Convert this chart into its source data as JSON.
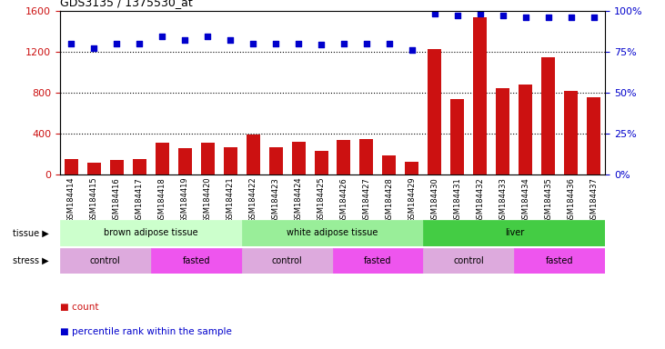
{
  "title": "GDS3135 / 1375530_at",
  "samples": [
    "GSM184414",
    "GSM184415",
    "GSM184416",
    "GSM184417",
    "GSM184418",
    "GSM184419",
    "GSM184420",
    "GSM184421",
    "GSM184422",
    "GSM184423",
    "GSM184424",
    "GSM184425",
    "GSM184426",
    "GSM184427",
    "GSM184428",
    "GSM184429",
    "GSM184430",
    "GSM184431",
    "GSM184432",
    "GSM184433",
    "GSM184434",
    "GSM184435",
    "GSM184436",
    "GSM184437"
  ],
  "counts": [
    155,
    115,
    140,
    155,
    310,
    255,
    310,
    265,
    390,
    265,
    315,
    230,
    335,
    350,
    185,
    125,
    1220,
    740,
    1530,
    845,
    875,
    1140,
    815,
    755
  ],
  "percentile_ranks": [
    80,
    77,
    80,
    80,
    84,
    82,
    84,
    82,
    80,
    80,
    80,
    79,
    80,
    80,
    80,
    76,
    98,
    97,
    98,
    97,
    96,
    96,
    96,
    96
  ],
  "bar_color": "#cc1111",
  "dot_color": "#0000cc",
  "left_ylim": [
    0,
    1600
  ],
  "right_ylim": [
    0,
    100
  ],
  "left_yticks": [
    0,
    400,
    800,
    1200,
    1600
  ],
  "right_yticks": [
    0,
    25,
    50,
    75,
    100
  ],
  "right_yticklabels": [
    "0%",
    "25%",
    "50%",
    "75%",
    "100%"
  ],
  "grid_values": [
    400,
    800,
    1200
  ],
  "tissue_groups": [
    {
      "label": "brown adipose tissue",
      "start": 0,
      "end": 8,
      "color": "#ccffcc"
    },
    {
      "label": "white adipose tissue",
      "start": 8,
      "end": 16,
      "color": "#99ee99"
    },
    {
      "label": "liver",
      "start": 16,
      "end": 24,
      "color": "#44cc44"
    }
  ],
  "stress_groups": [
    {
      "label": "control",
      "start": 0,
      "end": 4,
      "color": "#ddaadd"
    },
    {
      "label": "fasted",
      "start": 4,
      "end": 8,
      "color": "#ee55ee"
    },
    {
      "label": "control",
      "start": 8,
      "end": 12,
      "color": "#ddaadd"
    },
    {
      "label": "fasted",
      "start": 12,
      "end": 16,
      "color": "#ee55ee"
    },
    {
      "label": "control",
      "start": 16,
      "end": 20,
      "color": "#ddaadd"
    },
    {
      "label": "fasted",
      "start": 20,
      "end": 24,
      "color": "#ee55ee"
    }
  ],
  "legend_count_label": "count",
  "legend_pct_label": "percentile rank within the sample",
  "tissue_label": "tissue",
  "stress_label": "stress"
}
